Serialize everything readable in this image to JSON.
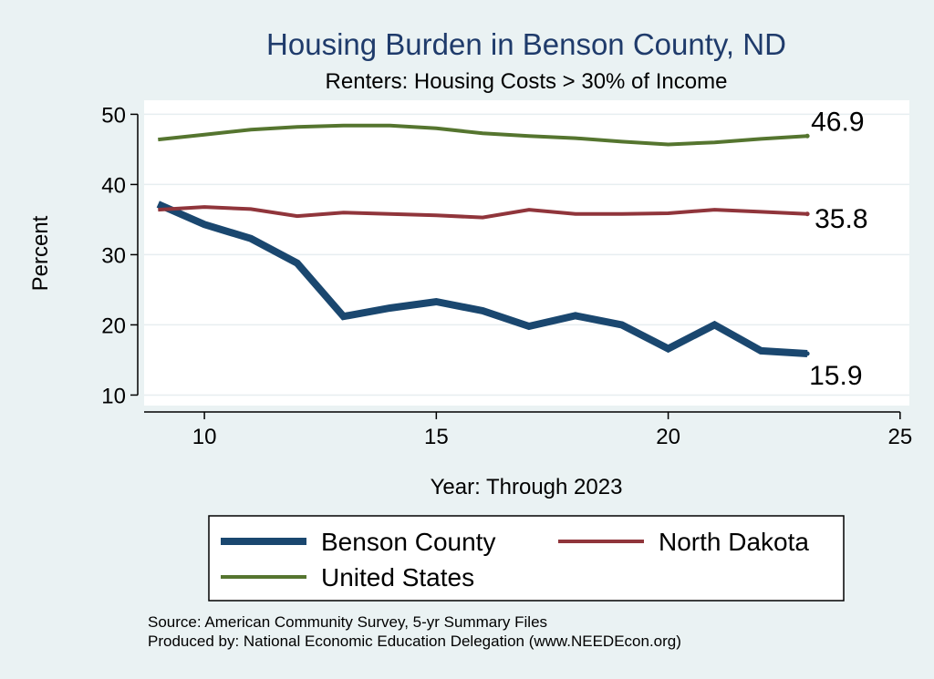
{
  "chart_data": {
    "type": "line",
    "title": "Housing Burden in Benson County, ND",
    "subtitle": "Renters: Housing Costs > 30% of Income",
    "xlabel": "Year: Through 2023",
    "ylabel": "Percent",
    "xlim": [
      8.7,
      25.2
    ],
    "ylim": [
      8.5,
      52
    ],
    "xticks": [
      10,
      15,
      20,
      25
    ],
    "yticks": [
      10,
      20,
      30,
      40,
      50
    ],
    "grid": true,
    "legend_position": "bottom",
    "series": [
      {
        "name": "Benson County",
        "color": "#1a476f",
        "line_width": "thick",
        "x": [
          9,
          10,
          11,
          12,
          13,
          14,
          15,
          16,
          17,
          18,
          19,
          20,
          21,
          22,
          23
        ],
        "values": [
          37.2,
          34.3,
          32.3,
          28.8,
          21.2,
          22.4,
          23.3,
          22.0,
          19.8,
          21.3,
          20.0,
          16.6,
          20.0,
          16.3,
          15.9
        ],
        "end_label": "15.9"
      },
      {
        "name": "North Dakota",
        "color": "#90353b",
        "line_width": "medium",
        "x": [
          9,
          10,
          11,
          12,
          13,
          14,
          15,
          16,
          17,
          18,
          19,
          20,
          21,
          22,
          23
        ],
        "values": [
          36.4,
          36.8,
          36.5,
          35.5,
          36.0,
          35.8,
          35.6,
          35.3,
          36.4,
          35.8,
          35.8,
          35.9,
          36.4,
          36.1,
          35.8
        ],
        "end_label": "35.8"
      },
      {
        "name": "United States",
        "color": "#55752f",
        "line_width": "medium",
        "x": [
          9,
          10,
          11,
          12,
          13,
          14,
          15,
          16,
          17,
          18,
          19,
          20,
          21,
          22,
          23
        ],
        "values": [
          46.4,
          47.1,
          47.8,
          48.2,
          48.4,
          48.4,
          48.0,
          47.3,
          46.9,
          46.6,
          46.1,
          45.7,
          46.0,
          46.5,
          46.9
        ],
        "end_label": "46.9"
      }
    ],
    "source_lines": [
      "Source: American Community Survey, 5-yr Summary Files",
      "Produced by: National Economic Education Delegation (www.NEEDEcon.org)"
    ]
  }
}
